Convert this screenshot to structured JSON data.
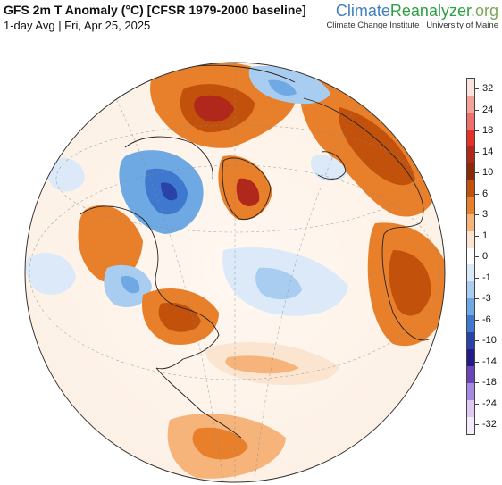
{
  "header": {
    "title": "GFS 2m T Anomaly (°C) [CFSR 1979-2000 baseline]",
    "subtitle": "1-day Avg | Fri, Apr 25, 2025"
  },
  "brand": {
    "part1": "Climate",
    "part2": "Reanalyzer",
    "part3": ".org",
    "tagline": "Climate Change Institute | University of Maine"
  },
  "legend": {
    "labels": [
      "32",
      "24",
      "18",
      "14",
      "10",
      "6",
      "3",
      "1",
      "0",
      "-1",
      "-3",
      "-6",
      "-10",
      "-14",
      "-18",
      "-24",
      "-32"
    ],
    "colors": [
      "#fbe4de",
      "#f4a39a",
      "#ef6f6c",
      "#e63129",
      "#b0271b",
      "#8a2a07",
      "#c2510c",
      "#e87f2a",
      "#f6b47a",
      "#fbe5d0",
      "#ffffff",
      "#dbe9f8",
      "#a9cdf0",
      "#6ea9e4",
      "#3f78cf",
      "#2943a8",
      "#241b8a",
      "#6a45b8",
      "#a58be0",
      "#dccaf3",
      "#f5ecfb"
    ]
  },
  "map": {
    "projection": "orthographic",
    "center": "North Atlantic / Arctic"
  }
}
